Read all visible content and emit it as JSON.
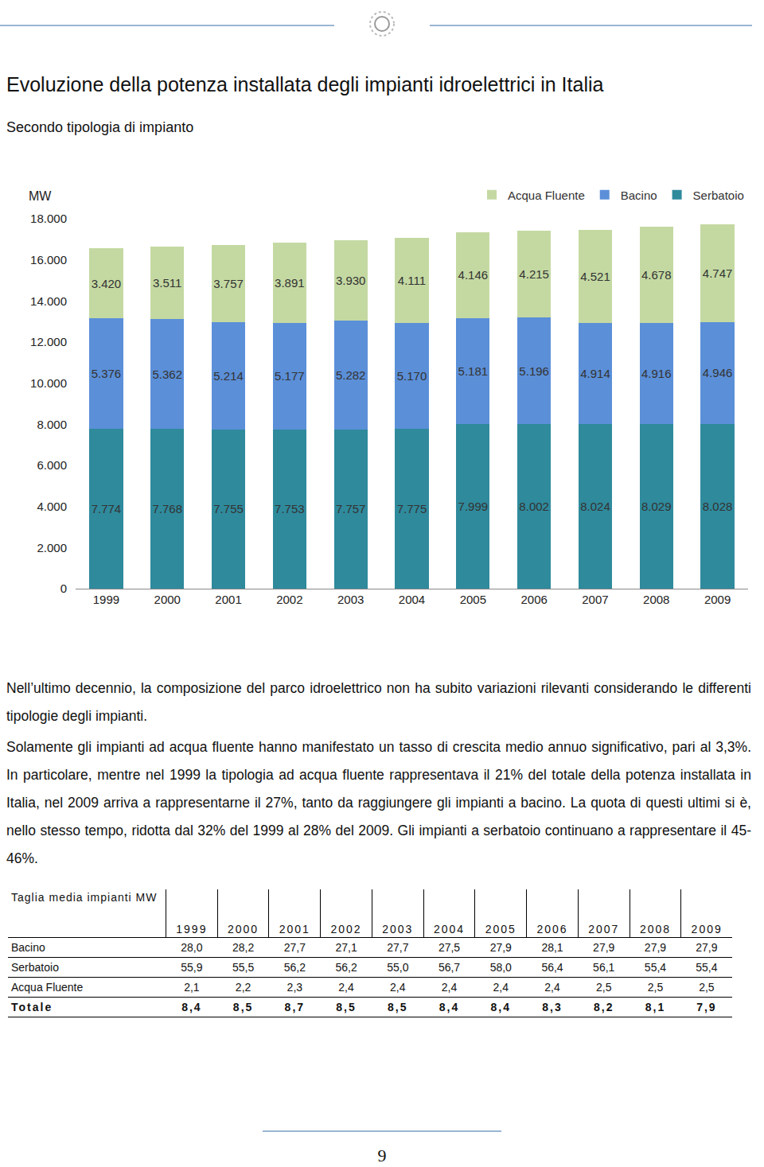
{
  "title": "Evoluzione della potenza installata degli impianti idroelettrici in Italia",
  "subtitle": "Secondo tipologia di impianto",
  "chart_data": {
    "type": "bar",
    "stacked": true,
    "data_labels": true,
    "grid": false,
    "legend": "top right",
    "y_label": "MW",
    "categories": [
      "1999",
      "2000",
      "2001",
      "2002",
      "2003",
      "2004",
      "2005",
      "2006",
      "2007",
      "2008",
      "2009"
    ],
    "ylim": [
      0,
      18000
    ],
    "yticks": [
      0,
      {
        "value": 2000,
        "label": "2.000"
      },
      {
        "value": 4000,
        "label": "4.000"
      },
      {
        "value": 6000,
        "label": "6.000"
      },
      {
        "value": 8000,
        "label": "8.000"
      },
      {
        "value": 10000,
        "label": "10.000"
      },
      {
        "value": 12000,
        "label": "12.000"
      },
      {
        "value": 14000,
        "label": "14.000"
      },
      {
        "value": 16000,
        "label": "16.000"
      },
      {
        "value": 18000,
        "label": "18.000"
      }
    ],
    "series": [
      {
        "name": "Serbatoio",
        "color": "#2f8a9c",
        "values": [
          7774,
          7768,
          7755,
          7753,
          7757,
          7775,
          7999,
          8002,
          8024,
          8029,
          8028
        ],
        "value_labels": [
          "7.774",
          "7.768",
          "7.755",
          "7.753",
          "7.757",
          "7.775",
          "7.999",
          "8.002",
          "8.024",
          "8.029",
          "8.028"
        ]
      },
      {
        "name": "Bacino",
        "color": "#5b8fd8",
        "values": [
          5376,
          5362,
          5214,
          5177,
          5282,
          5170,
          5181,
          5196,
          4914,
          4916,
          4946
        ],
        "value_labels": [
          "5.376",
          "5.362",
          "5.214",
          "5.177",
          "5.282",
          "5.170",
          "5.181",
          "5.196",
          "4.914",
          "4.916",
          "4.946"
        ]
      },
      {
        "name": "Acqua Fluente",
        "color": "#c4d9a2",
        "values": [
          3420,
          3511,
          3757,
          3891,
          3930,
          4111,
          4146,
          4215,
          4521,
          4678,
          4747
        ],
        "value_labels": [
          "3.420",
          "3.511",
          "3.757",
          "3.891",
          "3.930",
          "4.111",
          "4.146",
          "4.215",
          "4.521",
          "4.678",
          "4.747"
        ]
      }
    ]
  },
  "paragraphs": [
    "Nell’ultimo decennio, la composizione del parco idroelettrico non ha subito variazioni rilevanti considerando le differenti tipologie degli impianti.",
    "Solamente gli impianti ad acqua fluente hanno manifestato un tasso di crescita medio annuo significativo, pari al 3,3%. In particolare, mentre nel 1999 la tipologia ad acqua fluente rappresentava il 21% del totale della potenza installata in Italia, nel 2009 arriva a rappresentarne il 27%, tanto da raggiungere gli impianti a bacino. La quota di questi ultimi si è, nello stesso tempo, ridotta dal 32% del 1999 al 28% del 2009. Gli impianti a serbatoio continuano a rappresentare il 45-46%."
  ],
  "table": {
    "header": [
      "Taglia media impianti MW",
      "1999",
      "2000",
      "2001",
      "2002",
      "2003",
      "2004",
      "2005",
      "2006",
      "2007",
      "2008",
      "2009"
    ],
    "rows": [
      [
        "Bacino",
        "28,0",
        "28,2",
        "27,7",
        "27,1",
        "27,7",
        "27,5",
        "27,9",
        "28,1",
        "27,9",
        "27,9",
        "27,9"
      ],
      [
        "Serbatoio",
        "55,9",
        "55,5",
        "56,2",
        "56,2",
        "55,0",
        "56,7",
        "58,0",
        "56,4",
        "56,1",
        "55,4",
        "55,4"
      ],
      [
        "Acqua Fluente",
        "2,1",
        "2,2",
        "2,3",
        "2,4",
        "2,4",
        "2,4",
        "2,4",
        "2,4",
        "2,5",
        "2,5",
        "2,5"
      ],
      [
        "Totale",
        "8,4",
        "8,5",
        "8,7",
        "8,5",
        "8,5",
        "8,4",
        "8,4",
        "8,3",
        "8,2",
        "8,1",
        "7,9"
      ]
    ]
  },
  "page_number": "9"
}
